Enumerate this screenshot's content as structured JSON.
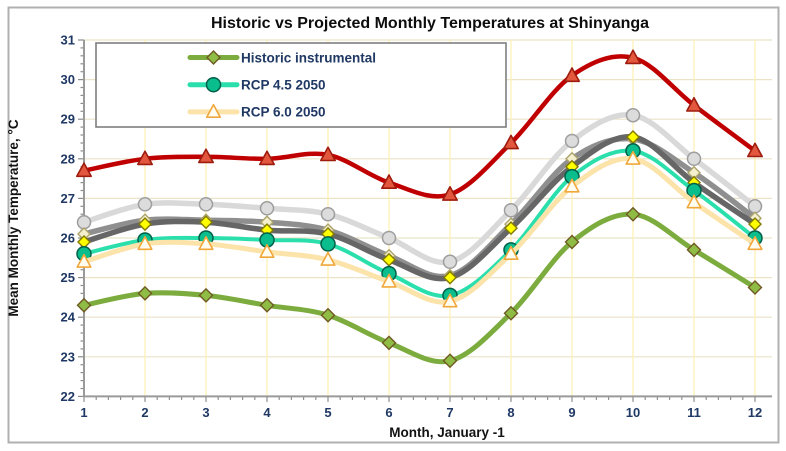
{
  "chart_data": {
    "type": "line",
    "title": "Historic vs Projected Monthly Temperatures at Shinyanga",
    "xlabel": "Month, January -1",
    "ylabel": "Mean Monthly Temperature, °C",
    "x": [
      1,
      2,
      3,
      4,
      5,
      6,
      7,
      8,
      9,
      10,
      11,
      12
    ],
    "xlim": [
      1,
      12
    ],
    "ylim": [
      22,
      31
    ],
    "y_ticks": [
      22,
      23,
      24,
      25,
      26,
      27,
      28,
      29,
      30,
      31
    ],
    "grid": true,
    "grid_color_horizontal": "#EAE3C8",
    "grid_color_vertical": "#FDF0B4",
    "axis_color": "#9A9A9A",
    "tick_label_color": "#1F3864",
    "legend": {
      "position": "top-left-inside",
      "order": [
        "historic",
        "rcp45",
        "rcp60"
      ],
      "entries": [
        "Historic instrumental",
        "RCP 4.5 2050",
        "RCP 6.0 2050"
      ]
    },
    "series": [
      {
        "id": "silver",
        "label": null,
        "in_legend": false,
        "marker": "circle",
        "line_color": "#D9D9D9",
        "line_width": 5.5,
        "marker_fill": "#DCDCDC",
        "marker_stroke": "#9E9E9E",
        "marker_size": 6.5,
        "values": [
          26.4,
          26.85,
          26.85,
          26.75,
          26.6,
          26.0,
          25.4,
          26.7,
          28.45,
          29.1,
          28.0,
          26.8
        ]
      },
      {
        "id": "cream",
        "label": null,
        "in_legend": false,
        "marker": "diamond",
        "line_color": "#8F8F8F",
        "line_width": 5.5,
        "marker_fill": "#F4EFCC",
        "marker_stroke": "#ACA36C",
        "marker_size": 6,
        "values": [
          26.1,
          26.45,
          26.45,
          26.4,
          26.2,
          25.55,
          25.05,
          26.35,
          28.0,
          28.5,
          27.65,
          26.5
        ]
      },
      {
        "id": "yellow",
        "label": null,
        "in_legend": false,
        "marker": "diamond",
        "line_color": "#666666",
        "line_width": 5.5,
        "marker_fill": "#FFFF00",
        "marker_stroke": "#827A00",
        "marker_size": 6,
        "values": [
          25.9,
          26.35,
          26.4,
          26.2,
          26.1,
          25.45,
          25.0,
          26.25,
          27.8,
          28.55,
          27.4,
          26.35
        ]
      },
      {
        "id": "rcp45",
        "label": "RCP 4.5 2050",
        "in_legend": true,
        "marker": "circle",
        "line_color": "#2BDFAC",
        "line_width": 4,
        "marker_fill": "#0ABD8D",
        "marker_stroke": "#00604A",
        "marker_size": 7,
        "values": [
          25.6,
          25.95,
          26.0,
          25.95,
          25.85,
          25.1,
          24.55,
          25.7,
          27.55,
          28.2,
          27.2,
          26.0
        ]
      },
      {
        "id": "rcp60",
        "label": "RCP 6.0 2050",
        "in_legend": true,
        "marker": "triangle",
        "line_color": "#FBE3A9",
        "line_width": 5,
        "marker_fill": "#FFFDF0",
        "marker_stroke": "#F0A73C",
        "marker_size": 7.2,
        "values": [
          25.4,
          25.85,
          25.85,
          25.65,
          25.45,
          24.9,
          24.4,
          25.6,
          27.3,
          28.0,
          26.9,
          25.85
        ]
      },
      {
        "id": "historic",
        "label": "Historic instrumental",
        "in_legend": true,
        "marker": "diamond",
        "line_color": "#7CAC3E",
        "line_width": 5,
        "marker_fill": "#8FBC45",
        "marker_stroke": "#6F5A23",
        "marker_size": 6.5,
        "values": [
          24.3,
          24.6,
          24.55,
          24.3,
          24.05,
          23.35,
          22.9,
          24.1,
          25.9,
          26.6,
          25.7,
          24.75
        ]
      },
      {
        "id": "red",
        "label": null,
        "in_legend": false,
        "marker": "triangle",
        "line_color": "#C00000",
        "line_width": 4.5,
        "marker_fill": "#E2573D",
        "marker_stroke": "#9E1C0E",
        "marker_size": 7.6,
        "values": [
          27.7,
          28.0,
          28.05,
          28.0,
          28.1,
          27.4,
          27.1,
          28.4,
          30.1,
          30.55,
          29.35,
          28.2
        ]
      }
    ]
  }
}
